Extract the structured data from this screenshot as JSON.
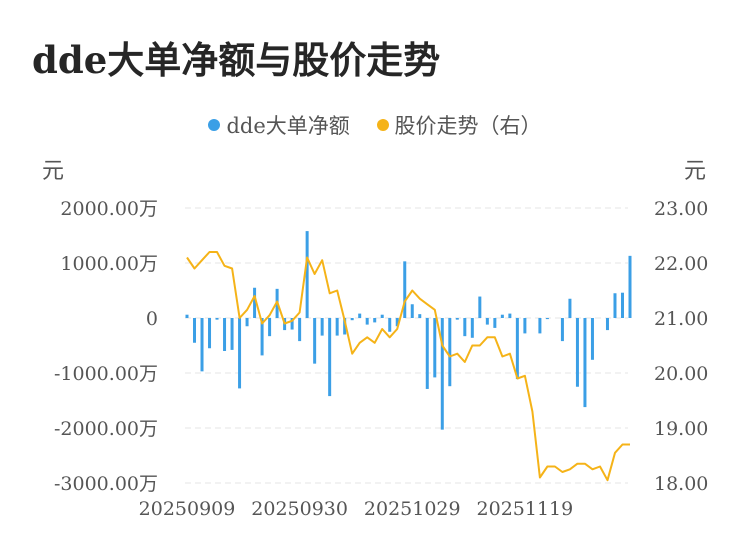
{
  "title": "dde大单净额与股价走势",
  "legend": [
    {
      "name": "dde大单净额",
      "color": "#3b9fe6"
    },
    {
      "name": "股价走势（右）",
      "color": "#f5b318"
    }
  ],
  "chart_data": {
    "type": "bar+line",
    "left_axis": {
      "unit": "元",
      "ylim": [
        -3000,
        2000
      ],
      "ticks": [
        2000,
        1000,
        0,
        -1000,
        -2000,
        -3000
      ],
      "tick_labels": [
        "2000.00万",
        "1000.00万",
        "0",
        "-1000.00万",
        "-2000.00万",
        "-3000.00万"
      ]
    },
    "right_axis": {
      "unit": "元",
      "ylim": [
        18,
        23
      ],
      "ticks": [
        23,
        22,
        21,
        20,
        19,
        18
      ],
      "tick_labels": [
        "23.00",
        "22.00",
        "21.00",
        "20.00",
        "19.00",
        "18.00"
      ]
    },
    "x_tick_labels": [
      {
        "index": 0,
        "label": "20250909"
      },
      {
        "index": 15,
        "label": "20250930"
      },
      {
        "index": 30,
        "label": "20251029"
      },
      {
        "index": 45,
        "label": "20251119"
      }
    ],
    "grid": true,
    "series": [
      {
        "name": "dde大单净额",
        "type": "bar",
        "color": "#3b9fe6",
        "values": [
          60,
          -450,
          -970,
          -550,
          -30,
          -600,
          -580,
          -1280,
          -150,
          550,
          -680,
          -330,
          530,
          -220,
          -210,
          -420,
          1580,
          -830,
          -320,
          -1420,
          -320,
          -300,
          -40,
          80,
          -120,
          -80,
          60,
          -250,
          -150,
          1030,
          250,
          70,
          -1290,
          -1080,
          -2030,
          -1240,
          -30,
          -330,
          -360,
          390,
          -120,
          -180,
          60,
          80,
          -1110,
          -280,
          0,
          -280,
          -20,
          0,
          -420,
          350,
          -1250,
          -1620,
          -760,
          0,
          -220,
          450,
          460,
          1130
        ],
        "unit_note": "万元"
      },
      {
        "name": "股价走势（右）",
        "type": "line",
        "color": "#f5b318",
        "values": [
          22.1,
          21.9,
          22.05,
          22.2,
          22.2,
          21.95,
          21.9,
          21.0,
          21.15,
          21.4,
          20.9,
          21.05,
          21.3,
          20.9,
          20.95,
          21.1,
          22.1,
          21.8,
          22.05,
          21.45,
          21.5,
          20.95,
          20.35,
          20.55,
          20.65,
          20.55,
          20.8,
          20.65,
          20.8,
          21.3,
          21.5,
          21.35,
          21.25,
          21.15,
          20.5,
          20.3,
          20.35,
          20.2,
          20.5,
          20.5,
          20.65,
          20.65,
          20.3,
          20.35,
          19.9,
          19.95,
          19.3,
          18.1,
          18.3,
          18.3,
          18.2,
          18.25,
          18.35,
          18.35,
          18.25,
          18.3,
          18.05,
          18.55,
          18.7,
          18.7
        ]
      }
    ]
  }
}
